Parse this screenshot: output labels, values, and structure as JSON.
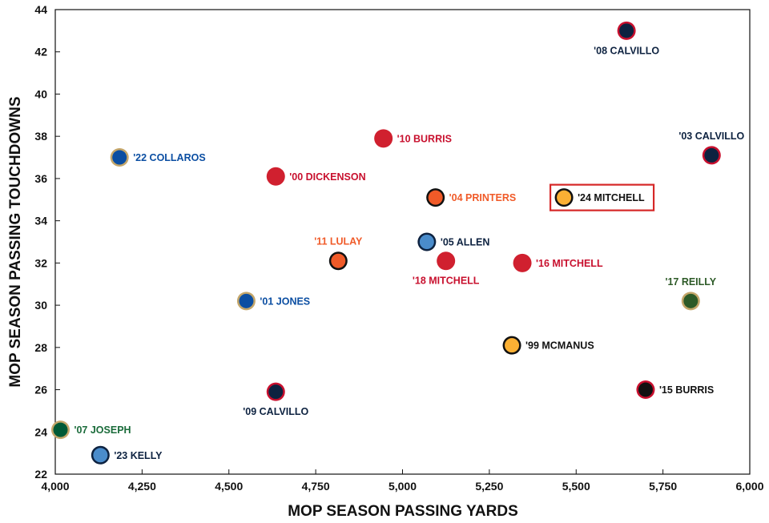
{
  "chart_data": {
    "type": "scatter",
    "xlabel": "MOP SEASON PASSING YARDS",
    "ylabel": "MOP SEASON PASSING TOUCHDOWNS",
    "xlim": [
      4000,
      6000
    ],
    "ylim": [
      22,
      44
    ],
    "x_ticks": [
      "4,000",
      "4,250",
      "4,500",
      "4,750",
      "5,000",
      "5,250",
      "5,500",
      "5,750",
      "6,000"
    ],
    "y_ticks": [
      "22",
      "24",
      "26",
      "28",
      "30",
      "32",
      "34",
      "36",
      "38",
      "40",
      "42",
      "44"
    ],
    "grid": false,
    "highlight": "'24 MITCHELL",
    "points": [
      {
        "label": "'08 CALVILLO",
        "x": 5645,
        "y": 43,
        "fill": "#0d2240",
        "ring": "#c8102e",
        "text_color": "#0d2240",
        "label_pos": "below"
      },
      {
        "label": "'03 CALVILLO",
        "x": 5890,
        "y": 37.1,
        "fill": "#0d2240",
        "ring": "#c8102e",
        "text_color": "#0d2240",
        "label_pos": "above"
      },
      {
        "label": "'10 BURRIS",
        "x": 4945,
        "y": 37.9,
        "fill": "#d0202f",
        "ring": "#d0202f",
        "text_color": "#c8102e",
        "label_pos": "right"
      },
      {
        "label": "'22 COLLAROS",
        "x": 4185,
        "y": 37,
        "fill": "#0b4ea2",
        "ring": "#c4a66a",
        "text_color": "#0b4ea2",
        "label_pos": "right"
      },
      {
        "label": "'00 DICKENSON",
        "x": 4635,
        "y": 36.1,
        "fill": "#d0202f",
        "ring": "#d0202f",
        "text_color": "#c8102e",
        "label_pos": "right"
      },
      {
        "label": "'04 PRINTERS",
        "x": 5095,
        "y": 35.1,
        "fill": "#f05a28",
        "ring": "#111111",
        "text_color": "#f05a28",
        "label_pos": "right"
      },
      {
        "label": "'24 MITCHELL",
        "x": 5465,
        "y": 35.1,
        "fill": "#fbb034",
        "ring": "#111111",
        "text_color": "#111111",
        "label_pos": "right"
      },
      {
        "label": "'11 LULAY",
        "x": 4815,
        "y": 32.1,
        "fill": "#f05a28",
        "ring": "#111111",
        "text_color": "#f05a28",
        "label_pos": "above"
      },
      {
        "label": "'05 ALLEN",
        "x": 5070,
        "y": 33,
        "fill": "#4a8ccb",
        "ring": "#0d2240",
        "text_color": "#0d2240",
        "label_pos": "right"
      },
      {
        "label": "'18 MITCHELL",
        "x": 5125,
        "y": 32.1,
        "fill": "#d0202f",
        "ring": "#d0202f",
        "text_color": "#c8102e",
        "label_pos": "below"
      },
      {
        "label": "'16 MITCHELL",
        "x": 5345,
        "y": 32,
        "fill": "#d0202f",
        "ring": "#d0202f",
        "text_color": "#c8102e",
        "label_pos": "right"
      },
      {
        "label": "'17 REILLY",
        "x": 5830,
        "y": 30.2,
        "fill": "#2d5a27",
        "ring": "#c4a66a",
        "text_color": "#2d5a27",
        "label_pos": "above"
      },
      {
        "label": "'01 JONES",
        "x": 4550,
        "y": 30.2,
        "fill": "#0b4ea2",
        "ring": "#c4a66a",
        "text_color": "#0b4ea2",
        "label_pos": "right"
      },
      {
        "label": "'99 MCMANUS",
        "x": 5315,
        "y": 28.1,
        "fill": "#fbb034",
        "ring": "#111111",
        "text_color": "#111111",
        "label_pos": "right"
      },
      {
        "label": "'09 CALVILLO",
        "x": 4635,
        "y": 25.9,
        "fill": "#0d2240",
        "ring": "#c8102e",
        "text_color": "#0d2240",
        "label_pos": "below"
      },
      {
        "label": "'15 BURRIS",
        "x": 5700,
        "y": 26,
        "fill": "#111111",
        "ring": "#c8102e",
        "text_color": "#111111",
        "label_pos": "right"
      },
      {
        "label": "'07 JOSEPH",
        "x": 4015,
        "y": 24.1,
        "fill": "#005a36",
        "ring": "#c4a66a",
        "text_color": "#1a6b3a",
        "label_pos": "right"
      },
      {
        "label": "'23 KELLY",
        "x": 4130,
        "y": 22.9,
        "fill": "#4a8ccb",
        "ring": "#0d2240",
        "text_color": "#0d2240",
        "label_pos": "right"
      }
    ]
  }
}
